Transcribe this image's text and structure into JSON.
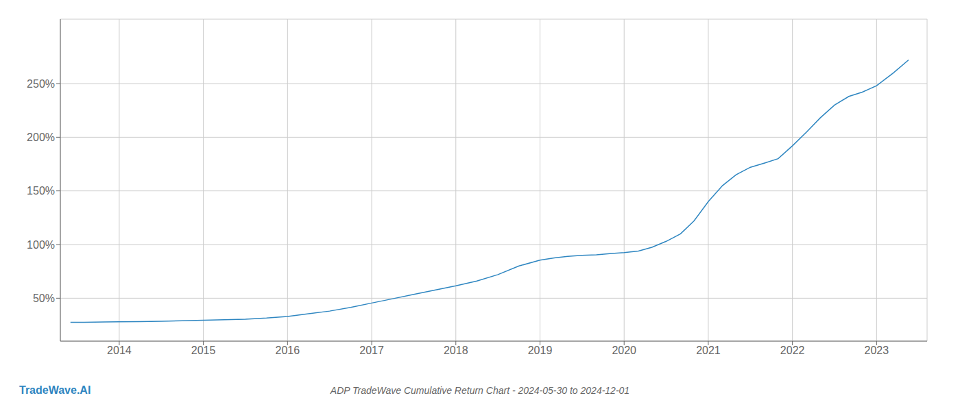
{
  "chart_data": {
    "type": "line",
    "title": "ADP TradeWave Cumulative Return Chart - 2024-05-30 to 2024-12-01",
    "annotations": [
      "TradeWave.AI"
    ],
    "color": "#2e86c1",
    "grid": true,
    "xlim": [
      2013.3,
      2023.6
    ],
    "xticks": [
      2014,
      2015,
      2016,
      2017,
      2018,
      2019,
      2020,
      2021,
      2022,
      2023
    ],
    "ylim": [
      0.1,
      3.1
    ],
    "yticks": [
      {
        "value": 0.5,
        "label": "50%"
      },
      {
        "value": 1.0,
        "label": "100%"
      },
      {
        "value": 1.5,
        "label": "150%"
      },
      {
        "value": 2.0,
        "label": "200%"
      },
      {
        "value": 2.5,
        "label": "250%"
      }
    ],
    "x": [
      2013.42,
      2013.58,
      2013.83,
      2014.0,
      2014.25,
      2014.5,
      2014.75,
      2015.0,
      2015.25,
      2015.5,
      2015.75,
      2016.0,
      2016.25,
      2016.5,
      2016.75,
      2017.0,
      2017.25,
      2017.5,
      2017.75,
      2018.0,
      2018.25,
      2018.5,
      2018.75,
      2019.0,
      2019.17,
      2019.33,
      2019.5,
      2019.67,
      2019.83,
      2020.0,
      2020.17,
      2020.33,
      2020.5,
      2020.67,
      2020.83,
      2021.0,
      2021.17,
      2021.33,
      2021.5,
      2021.67,
      2021.83,
      2022.0,
      2022.17,
      2022.33,
      2022.5,
      2022.67,
      2022.83,
      2023.0,
      2023.2,
      2023.38
    ],
    "values": [
      0.275,
      0.275,
      0.278,
      0.28,
      0.282,
      0.285,
      0.29,
      0.295,
      0.3,
      0.305,
      0.315,
      0.33,
      0.355,
      0.38,
      0.415,
      0.455,
      0.495,
      0.535,
      0.575,
      0.615,
      0.66,
      0.72,
      0.8,
      0.855,
      0.875,
      0.89,
      0.9,
      0.905,
      0.915,
      0.925,
      0.94,
      0.975,
      1.03,
      1.1,
      1.22,
      1.4,
      1.55,
      1.65,
      1.72,
      1.76,
      1.8,
      1.92,
      2.05,
      2.18,
      2.3,
      2.38,
      2.42,
      2.48,
      2.6,
      2.72
    ]
  }
}
